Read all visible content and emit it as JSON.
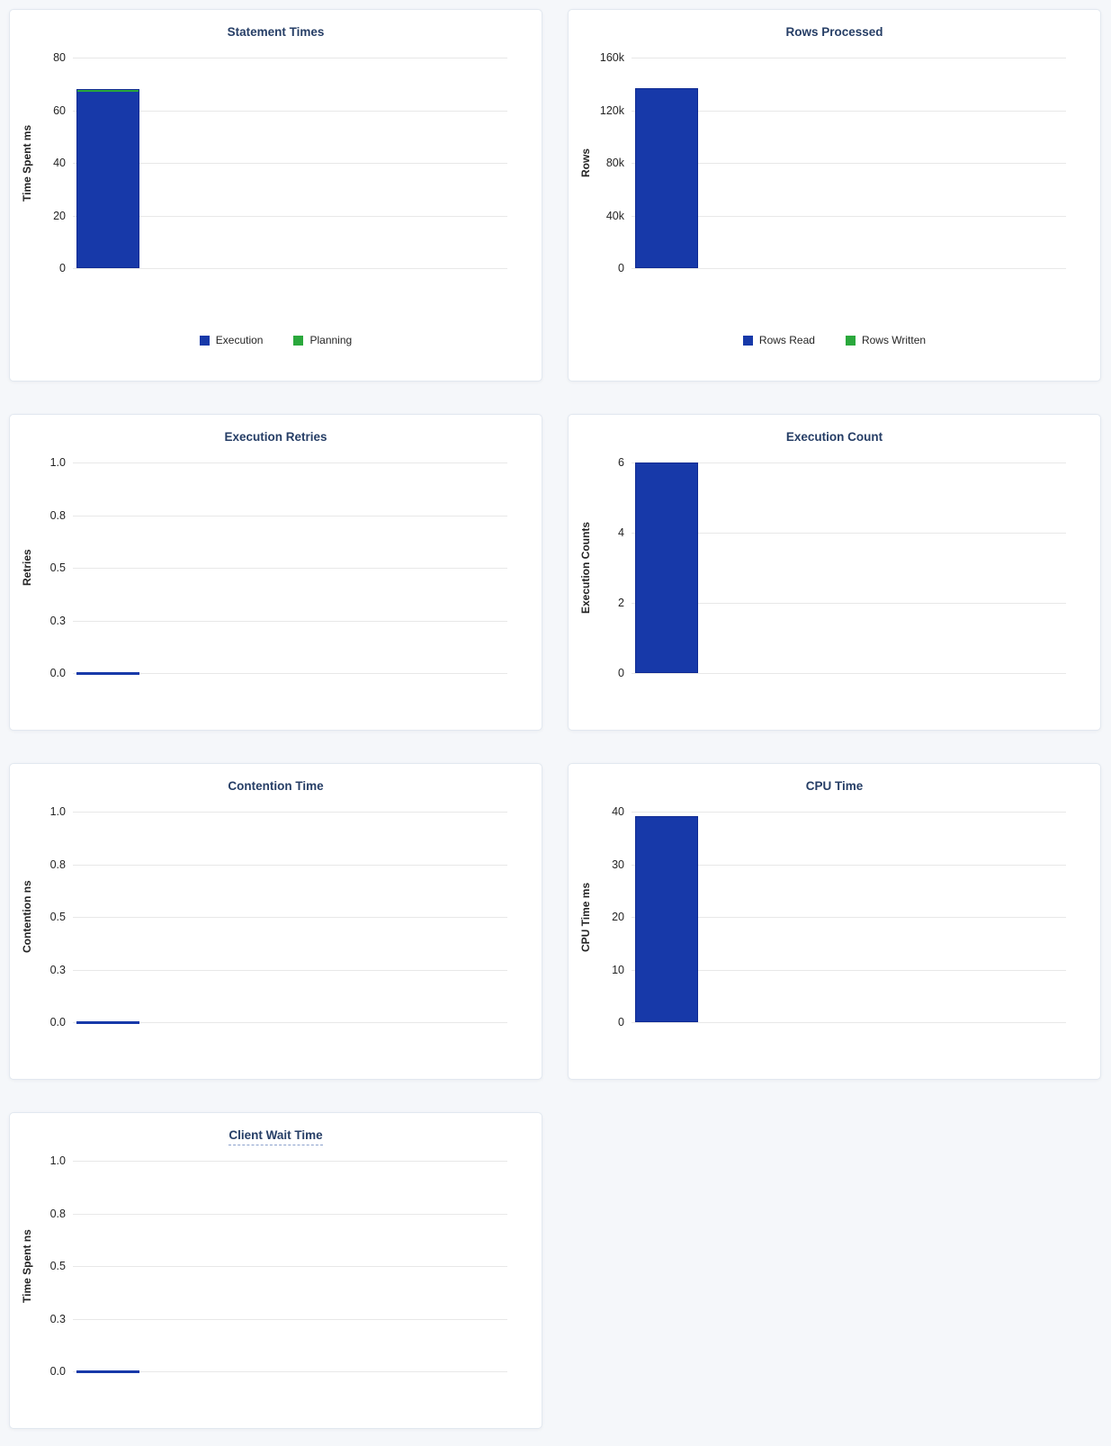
{
  "page": {
    "background": "#f5f7fa"
  },
  "palette": {
    "bar_blue": "#1739a9",
    "bar_blue_border": "#0f2a92",
    "bar_green": "#2aa83c",
    "title_color": "#263e66",
    "grid_color": "#e8e8e8",
    "tick_color": "#242424",
    "card_background": "#ffffff",
    "card_border": "#e2e8f0"
  },
  "chart_data": [
    {
      "type": "bar",
      "title": "Statement Times",
      "title_tooltip": false,
      "ylabel": "Time Spent ms",
      "ylim": [
        0,
        80
      ],
      "yticks": [
        "80",
        "60",
        "40",
        "20",
        "0"
      ],
      "grid": true,
      "legend_position": "bottom",
      "series": [
        {
          "name": "Execution",
          "color": "#1739a9",
          "value": 67.2
        },
        {
          "name": "Planning",
          "color": "#2aa83c",
          "value": 0.8
        }
      ],
      "legend": [
        {
          "label": "Execution",
          "color": "#1739a9"
        },
        {
          "label": "Planning",
          "color": "#2aa83c"
        }
      ]
    },
    {
      "type": "bar",
      "title": "Rows Processed",
      "title_tooltip": false,
      "ylabel": "Rows",
      "ylim": [
        0,
        160000
      ],
      "yticks": [
        "160k",
        "120k",
        "80k",
        "40k",
        "0"
      ],
      "grid": true,
      "legend_position": "bottom",
      "series": [
        {
          "name": "Rows Read",
          "color": "#1739a9",
          "value": 137000
        },
        {
          "name": "Rows Written",
          "color": "#2aa83c",
          "value": 0
        }
      ],
      "legend": [
        {
          "label": "Rows Read",
          "color": "#1739a9"
        },
        {
          "label": "Rows Written",
          "color": "#2aa83c"
        }
      ]
    },
    {
      "type": "bar",
      "title": "Execution Retries",
      "title_tooltip": false,
      "ylabel": "Retries",
      "ylim": [
        0,
        1
      ],
      "yticks": [
        "1.0",
        "0.8",
        "0.5",
        "0.3",
        "0.0"
      ],
      "grid": true,
      "legend_position": "none",
      "series": [
        {
          "color": "#1739a9",
          "value": 0
        }
      ],
      "legend": []
    },
    {
      "type": "bar",
      "title": "Execution Count",
      "title_tooltip": false,
      "ylabel": "Execution Counts",
      "ylim": [
        0,
        6
      ],
      "yticks": [
        "6",
        "4",
        "2",
        "0"
      ],
      "grid": true,
      "legend_position": "none",
      "series": [
        {
          "color": "#1739a9",
          "value": 6
        }
      ],
      "legend": []
    },
    {
      "type": "bar",
      "title": "Contention Time",
      "title_tooltip": false,
      "ylabel": "Contention ns",
      "ylim": [
        0,
        1
      ],
      "yticks": [
        "1.0",
        "0.8",
        "0.5",
        "0.3",
        "0.0"
      ],
      "grid": true,
      "legend_position": "none",
      "series": [
        {
          "color": "#1739a9",
          "value": 0
        }
      ],
      "legend": []
    },
    {
      "type": "bar",
      "title": "CPU Time",
      "title_tooltip": false,
      "ylabel": "CPU Time ms",
      "ylim": [
        0,
        40
      ],
      "yticks": [
        "40",
        "30",
        "20",
        "10",
        "0"
      ],
      "grid": true,
      "legend_position": "none",
      "series": [
        {
          "color": "#1739a9",
          "value": 39.2
        }
      ],
      "legend": []
    },
    {
      "type": "bar",
      "title": "Client Wait Time",
      "title_tooltip": true,
      "ylabel": "Time Spent ns",
      "ylim": [
        0,
        1
      ],
      "yticks": [
        "1.0",
        "0.8",
        "0.5",
        "0.3",
        "0.0"
      ],
      "grid": true,
      "legend_position": "none",
      "series": [
        {
          "color": "#1739a9",
          "value": 0
        }
      ],
      "legend": []
    }
  ]
}
